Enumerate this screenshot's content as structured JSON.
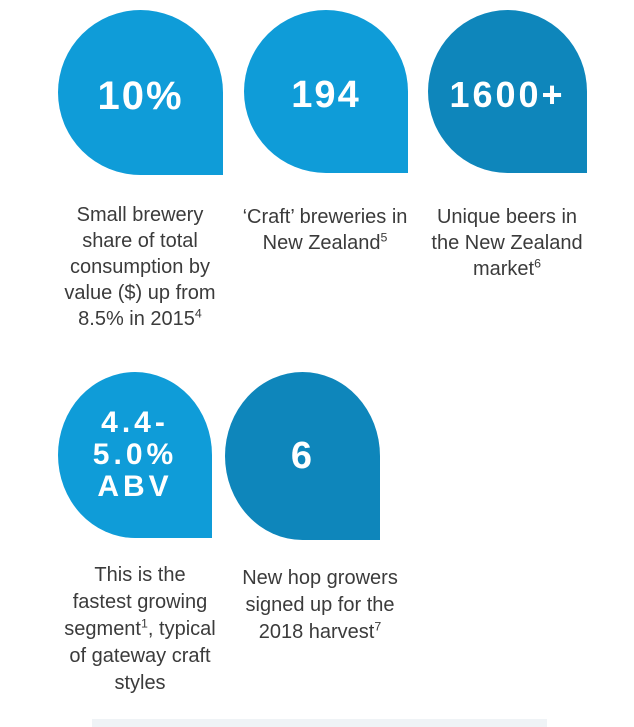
{
  "colors": {
    "bright_blue": "#0f9cd8",
    "deep_blue": "#0e86bb",
    "value_text": "#ffffff",
    "caption_text": "#3b3b3b",
    "background": "#ffffff",
    "bottom_strip": "#eff3f6"
  },
  "stats": [
    {
      "name": "small-brewery-share",
      "value_lines": [
        "10%"
      ],
      "color": "bright_blue",
      "caption": [
        [
          "Small brewery"
        ],
        [
          "share of total"
        ],
        [
          "consumption by"
        ],
        [
          "value ($) up from"
        ],
        [
          "8.5% in 2015",
          {
            "sup": "4"
          }
        ]
      ]
    },
    {
      "name": "craft-breweries",
      "value_lines": [
        "194"
      ],
      "color": "bright_blue",
      "caption": [
        [
          "‘Craft’ breweries in"
        ],
        [
          "New Zealand",
          {
            "sup": "5"
          }
        ]
      ]
    },
    {
      "name": "unique-beers",
      "value_lines": [
        "1600+"
      ],
      "color": "deep_blue",
      "caption": [
        [
          "Unique beers in"
        ],
        [
          "the New Zealand"
        ],
        [
          "market",
          {
            "sup": "6"
          }
        ]
      ]
    },
    {
      "name": "abv-segment",
      "value_lines": [
        "4.4-",
        "5.0%",
        "ABV"
      ],
      "color": "bright_blue",
      "caption": [
        [
          "This is the"
        ],
        [
          "fastest growing"
        ],
        [
          "segment",
          {
            "sup": "1"
          },
          ", typical"
        ],
        [
          "of gateway craft"
        ],
        [
          "styles"
        ]
      ]
    },
    {
      "name": "new-hop-growers",
      "value_lines": [
        "6"
      ],
      "color": "deep_blue",
      "caption": [
        [
          "New hop growers"
        ],
        [
          "signed up for the"
        ],
        [
          "2018 harvest",
          {
            "sup": "7"
          }
        ]
      ]
    }
  ]
}
